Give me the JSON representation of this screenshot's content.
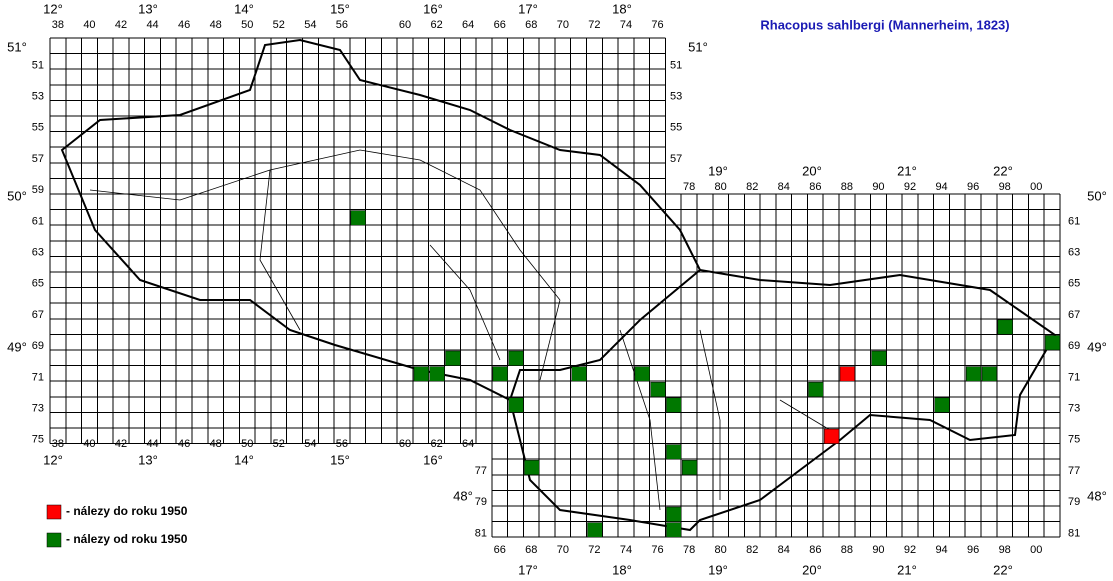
{
  "title": "Rhacopus sahlbergi (Mannerheim, 1823)",
  "legend": [
    {
      "label": "- nálezy do roku 1950",
      "color": "#ff0000"
    },
    {
      "label": "- nálezy od roku 1950",
      "color": "#007800"
    }
  ],
  "czech_top_columns": [
    38,
    40,
    42,
    44,
    46,
    48,
    50,
    52,
    54,
    56,
    60,
    62,
    64,
    66,
    68,
    70,
    72,
    74,
    76
  ],
  "czech_bottom_columns": [
    38,
    40,
    42,
    44,
    46,
    48,
    50,
    52,
    54,
    56,
    60,
    62,
    64
  ],
  "slovak_top_columns": [
    78,
    80,
    82,
    84,
    86,
    88,
    90,
    92,
    94,
    96,
    98,
    {
      "value": 100,
      "label": "00"
    }
  ],
  "slovak_bottom_columns": [
    66,
    68,
    70,
    72,
    74,
    76,
    78,
    80,
    82,
    84,
    86,
    88,
    90,
    92,
    94,
    96,
    98,
    {
      "value": 100,
      "label": "00"
    }
  ],
  "czech_left_rows": [
    51,
    53,
    55,
    57,
    59,
    61,
    63,
    65,
    67,
    69,
    71,
    73,
    75
  ],
  "czech_right_rows": [
    51,
    53,
    55,
    57
  ],
  "slovak_left_rows": [
    77,
    79,
    81
  ],
  "slovak_right_rows": [
    61,
    63,
    65,
    67,
    69,
    71,
    73,
    75,
    77,
    79,
    81
  ],
  "degree_labels": [
    "12°",
    "13°",
    "14°",
    "15°",
    "16°",
    "17°",
    "18°",
    "19°",
    "20°",
    "21°",
    "22°",
    "12°",
    "13°",
    "14°",
    "15°",
    "16°",
    "17°",
    "18°",
    "19°",
    "20°",
    "21°",
    "22°",
    "51°",
    "50°",
    "49°",
    "51°",
    "50°",
    "49°",
    "48°",
    "48°"
  ],
  "records_before_1950": [
    [
      88,
      71
    ],
    [
      87,
      75
    ]
  ],
  "records_since_1950": [
    [
      57,
      61
    ],
    [
      61,
      71
    ],
    [
      62,
      71
    ],
    [
      63,
      70
    ],
    [
      66,
      71
    ],
    [
      67,
      70
    ],
    [
      67,
      73
    ],
    [
      71,
      71
    ],
    [
      75,
      71
    ],
    [
      76,
      72
    ],
    [
      77,
      73
    ],
    [
      77,
      76
    ],
    [
      78,
      77
    ],
    [
      68,
      77
    ],
    [
      72,
      81
    ],
    [
      77,
      80
    ],
    [
      77,
      81
    ],
    [
      86,
      72
    ],
    [
      90,
      70
    ],
    [
      94,
      73
    ],
    [
      96,
      71
    ],
    [
      97,
      71
    ],
    [
      98,
      68
    ],
    [
      101,
      69
    ]
  ]
}
